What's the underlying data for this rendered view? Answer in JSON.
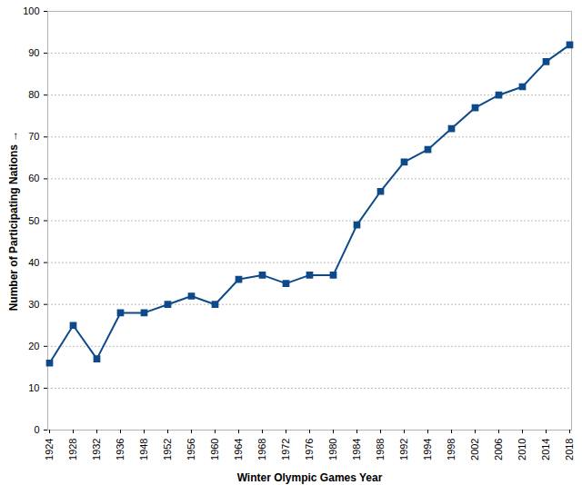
{
  "chart_data": {
    "type": "line",
    "x_label": "Winter Olympic Games Year",
    "y_label": "Number of Participating Nations",
    "categories": [
      "1924",
      "1928",
      "1932",
      "1936",
      "1948",
      "1952",
      "1956",
      "1960",
      "1964",
      "1968",
      "1972",
      "1976",
      "1980",
      "1984",
      "1988",
      "1992",
      "1994",
      "1998",
      "2002",
      "2006",
      "2010",
      "2014",
      "2018"
    ],
    "values": [
      16,
      25,
      17,
      28,
      28,
      30,
      32,
      30,
      36,
      37,
      35,
      37,
      37,
      49,
      57,
      64,
      67,
      72,
      77,
      80,
      82,
      88,
      92
    ],
    "color": "#0e4a8a",
    "marker": "square",
    "line_style": "solid",
    "ylim": [
      0,
      100
    ],
    "yticks": [
      0,
      10,
      20,
      30,
      40,
      50,
      60,
      70,
      80,
      90,
      100
    ],
    "grid": true
  }
}
